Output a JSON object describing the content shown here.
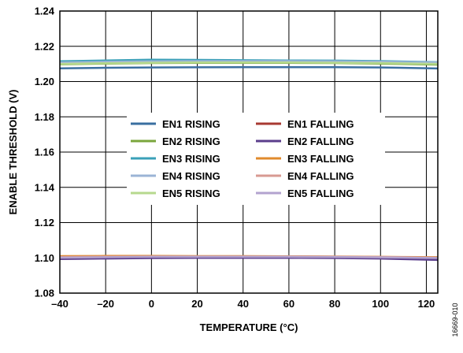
{
  "chart_data": {
    "type": "line",
    "xlabel": "TEMPERATURE (°C)",
    "ylabel": "ENABLE THRESHOLD (V)",
    "xlim": [
      -40,
      125
    ],
    "ylim": [
      1.08,
      1.24
    ],
    "xticks": [
      -40,
      -20,
      0,
      20,
      40,
      60,
      80,
      100,
      120
    ],
    "xtick_labels": [
      "–40",
      "–20",
      "0",
      "20",
      "40",
      "60",
      "80",
      "100",
      "120"
    ],
    "yticks": [
      1.08,
      1.1,
      1.12,
      1.14,
      1.16,
      1.18,
      1.2,
      1.22,
      1.24
    ],
    "ytick_labels": [
      "1.08",
      "1.10",
      "1.12",
      "1.14",
      "1.16",
      "1.18",
      "1.20",
      "1.22",
      "1.24"
    ],
    "grid": true,
    "legend_position": "center",
    "x": [
      -40,
      -20,
      0,
      20,
      40,
      60,
      80,
      100,
      125
    ],
    "series": [
      {
        "name": "EN1 RISING",
        "color": "#3a6fa0",
        "values": [
          1.2075,
          1.2078,
          1.208,
          1.2081,
          1.2082,
          1.2082,
          1.2082,
          1.208,
          1.2074
        ]
      },
      {
        "name": "EN2 RISING",
        "color": "#7aa63c",
        "values": [
          1.2098,
          1.2102,
          1.2105,
          1.2106,
          1.2106,
          1.2106,
          1.2105,
          1.2102,
          1.2096
        ]
      },
      {
        "name": "EN3 RISING",
        "color": "#3aa0b8",
        "values": [
          1.2115,
          1.212,
          1.2124,
          1.2123,
          1.2121,
          1.212,
          1.2119,
          1.2116,
          1.211
        ]
      },
      {
        "name": "EN4 RISING",
        "color": "#9bb4d6",
        "values": [
          1.2108,
          1.2112,
          1.2115,
          1.2116,
          1.2116,
          1.2116,
          1.2115,
          1.2113,
          1.2108
        ]
      },
      {
        "name": "EN5 RISING",
        "color": "#b6d98e",
        "values": [
          1.21,
          1.2104,
          1.2107,
          1.2108,
          1.2108,
          1.2108,
          1.2107,
          1.2105,
          1.21
        ]
      },
      {
        "name": "EN1 FALLING",
        "color": "#a83a32",
        "values": [
          1.0998,
          1.1001,
          1.1003,
          1.1004,
          1.1004,
          1.1004,
          1.1003,
          1.1001,
          1.0996
        ]
      },
      {
        "name": "EN2 FALLING",
        "color": "#5b3e8c",
        "values": [
          1.0993,
          1.0996,
          1.0999,
          1.1,
          1.1,
          1.1,
          1.0999,
          1.0996,
          1.0988
        ]
      },
      {
        "name": "EN3 FALLING",
        "color": "#e08a2c",
        "values": [
          1.101,
          1.1011,
          1.1011,
          1.101,
          1.101,
          1.1009,
          1.1008,
          1.1006,
          1.1004
        ]
      },
      {
        "name": "EN4 FALLING",
        "color": "#d89a92",
        "values": [
          1.1005,
          1.1007,
          1.1008,
          1.1008,
          1.1008,
          1.1008,
          1.1007,
          1.1005,
          1.1001
        ]
      },
      {
        "name": "EN5 FALLING",
        "color": "#b3a3cf",
        "values": [
          1.1001,
          1.1004,
          1.1006,
          1.1006,
          1.1006,
          1.1006,
          1.1005,
          1.1003,
          1.0999
        ]
      }
    ],
    "figure_id": "16669-010"
  }
}
